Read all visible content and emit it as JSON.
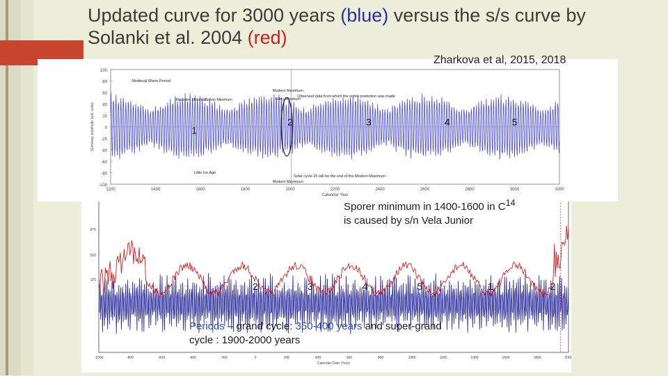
{
  "slide": {
    "title_part1": "Updated curve for 3000 years ",
    "title_blue": "(blue)",
    "title_part2": " versus the s/s curve by Solanki et al. 2004 ",
    "title_red": "(red)",
    "citation": "Zharkova et al, 2015, 2018",
    "sporer_line1": "Sporer minimum in 1400-1600 in C",
    "sporer_sup": "14",
    "sporer_line2": "is caused by s/n Vela Junior",
    "periods_label": "Periods",
    "periods_mid1": " – grand cycle: ",
    "periods_val1": "350-400 years",
    "periods_and": " and ",
    "periods_mid2": "super-grand cycle : 1900-2000 years",
    "colors": {
      "blue_series": "#4a4adf",
      "red_series": "#d42020",
      "dark_blue": "#1a1a9a",
      "accent": "#c9452f"
    }
  },
  "chart_data": [
    {
      "type": "line",
      "xlim": [
        1200,
        3200
      ],
      "ylim": [
        -100,
        100
      ],
      "x_ticks": [
        "1200",
        "1400",
        "1600",
        "1800",
        "2000",
        "2200",
        "2400",
        "2600",
        "2800",
        "3000",
        "3200"
      ],
      "y_ticks": [
        "100",
        "80",
        "60",
        "40",
        "20",
        "0",
        "-20",
        "-40",
        "-60",
        "-80",
        "-100"
      ],
      "xlabel": "Calendar Year",
      "ylabel": "Summary amplitude (arb. units)",
      "series": [
        {
          "values_note": "oscillating amplitude",
          "x_start": 1200,
          "x_end": 3200,
          "amplitude": 60,
          "period_years": 22
        }
      ],
      "grand_cycle_markers": [
        {
          "label": "1",
          "x": 1650
        },
        {
          "label": "2",
          "x": 2000
        },
        {
          "label": "3",
          "x": 2350
        },
        {
          "label": "4",
          "x": 2700
        },
        {
          "label": "5",
          "x": 3000
        }
      ],
      "annotations": [
        "Medieval Warm Period",
        "Maunder Minimum",
        "Dalton Minimum",
        "Modern Maximum",
        "Eddy Minimum",
        "Observed data from which the entire prediction was made",
        "Little Ice Age",
        "Modern Maximum",
        "Solar cycle 26 will be the end of the Modern Maximum"
      ]
    },
    {
      "type": "line",
      "xlim": [
        -1000,
        2000
      ],
      "x_ticks": [
        "-1000",
        "-800",
        "-600",
        "-400",
        "-200",
        "0",
        "200",
        "400",
        "600",
        "800",
        "1000",
        "1200",
        "1400",
        "1600",
        "1800",
        "2000"
      ],
      "y_ticks": [
        "875",
        "500",
        "125"
      ],
      "xlabel": "Calendar Date (Year)",
      "series": [
        {
          "name": "",
          "color": "red",
          "x_start": -1000,
          "x_end": 2000
        },
        {
          "name": "",
          "color": "blue",
          "x_start": -1000,
          "x_end": 2000
        }
      ],
      "grand_cycle_markers": [
        {
          "label": "2",
          "x": 0
        },
        {
          "label": "3",
          "x": 350
        },
        {
          "label": "4",
          "x": 700
        },
        {
          "label": "5",
          "x": 1050
        },
        {
          "label": "1",
          "x": 1500
        },
        {
          "label": "2",
          "x": 1900
        }
      ]
    }
  ]
}
